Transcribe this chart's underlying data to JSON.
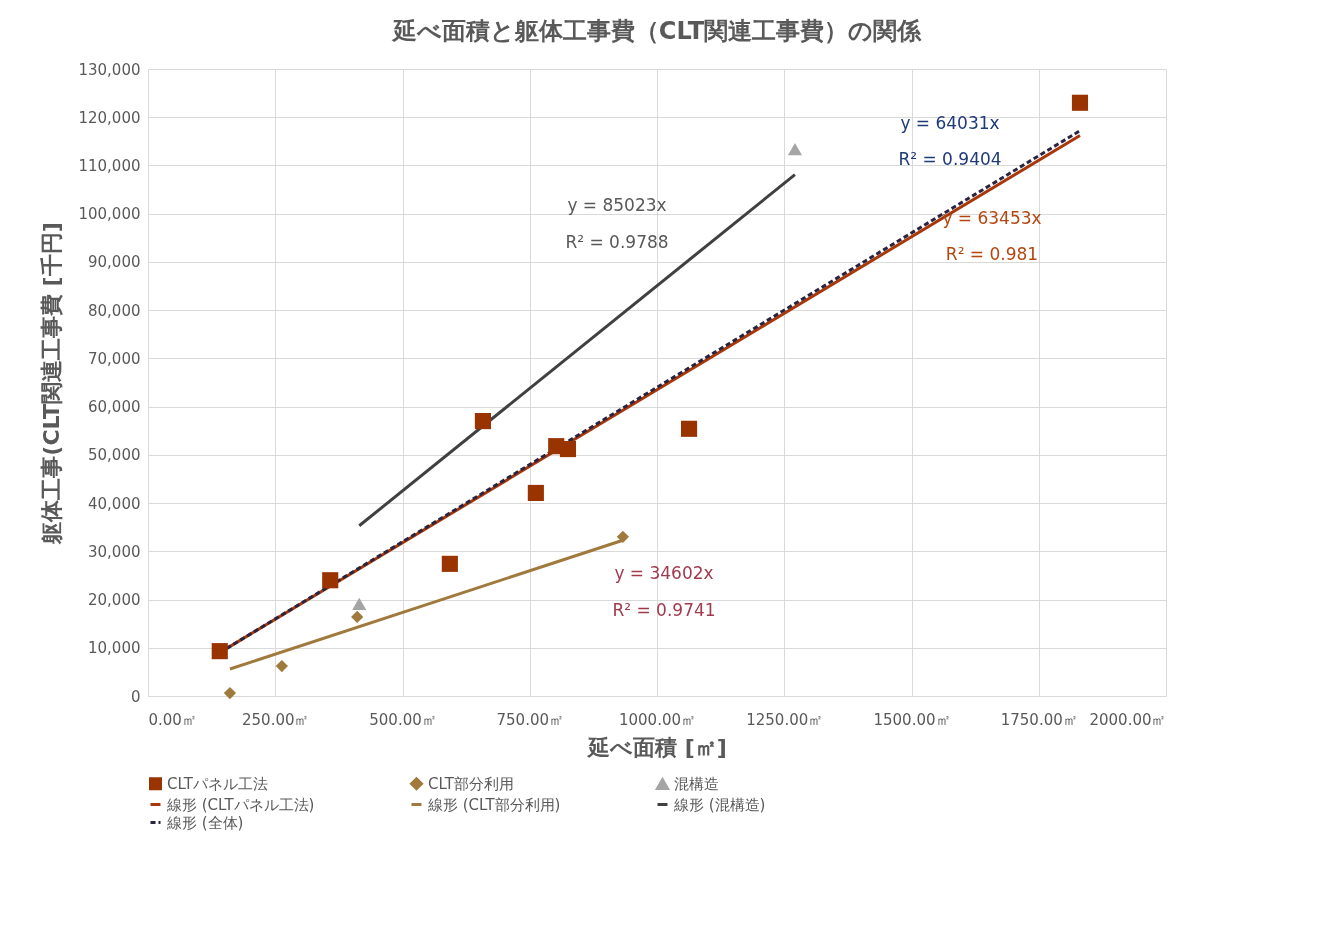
{
  "chart_data": {
    "type": "scatter",
    "title": "延べ面積と躯体工事費（CLT関連工事費）の関係",
    "xlabel": "延べ面積 [㎡]",
    "ylabel": "躯体工事(CLT関連工事費 [千円]",
    "xlim": [
      0,
      2000
    ],
    "xticks": [
      {
        "value": 0,
        "label": "0.00㎡"
      },
      {
        "value": 250,
        "label": "250.00㎡"
      },
      {
        "value": 500,
        "label": "500.00㎡"
      },
      {
        "value": 750,
        "label": "750.00㎡"
      },
      {
        "value": 1000,
        "label": "1000.00㎡"
      },
      {
        "value": 1250,
        "label": "1250.00㎡"
      },
      {
        "value": 1500,
        "label": "1500.00㎡"
      },
      {
        "value": 1750,
        "label": "1750.00㎡"
      },
      {
        "value": 2000,
        "label": "2000.00㎡"
      }
    ],
    "ylim": [
      0,
      130000
    ],
    "yticks": [
      0,
      {
        "value": 10000,
        "label": "10,000"
      },
      {
        "value": 20000,
        "label": "20,000"
      },
      {
        "value": 30000,
        "label": "30,000"
      },
      {
        "value": 40000,
        "label": "40,000"
      },
      {
        "value": 50000,
        "label": "50,000"
      },
      {
        "value": 60000,
        "label": "60,000"
      },
      {
        "value": 70000,
        "label": "70,000"
      },
      {
        "value": 80000,
        "label": "80,000"
      },
      {
        "value": 90000,
        "label": "90,000"
      },
      {
        "value": 100000,
        "label": "100,000"
      },
      {
        "value": 110000,
        "label": "110,000"
      },
      {
        "value": 120000,
        "label": "120,000"
      },
      {
        "value": 130000,
        "label": "130,000"
      }
    ],
    "grid": true,
    "legend": "bottom",
    "series": [
      {
        "name": "CLTパネル工法",
        "type": "scatter",
        "marker": "square",
        "color": "#993300",
        "x": [
          141,
          358,
          593,
          658,
          762,
          802,
          825,
          1063,
          1831
        ],
        "values": [
          9300,
          24000,
          27400,
          57000,
          42100,
          51800,
          51200,
          55400,
          123000
        ]
      },
      {
        "name": "CLT部分利用",
        "type": "scatter",
        "marker": "diamond",
        "color": "#a07a3c",
        "x": [
          161,
          263,
          411,
          933
        ],
        "values": [
          600,
          6200,
          16400,
          33000
        ]
      },
      {
        "name": "混構造",
        "type": "scatter",
        "marker": "triangle",
        "color": "#a5a5a5",
        "x": [
          415,
          1271
        ],
        "values": [
          19100,
          113400
        ]
      },
      {
        "name": "線形 (CLTパネル工法)",
        "type": "line",
        "line_style": "solid",
        "color": "#a8380a",
        "x": [
          141,
          1831
        ],
        "values": [
          9000,
          116200
        ]
      },
      {
        "name": "線形 (CLT部分利用)",
        "type": "line",
        "line_style": "solid",
        "color": "#a07a3c",
        "x": [
          161,
          933
        ],
        "values": [
          5600,
          32300
        ]
      },
      {
        "name": "線形 (混構造)",
        "type": "line",
        "line_style": "solid",
        "color": "#404040",
        "x": [
          415,
          1271
        ],
        "values": [
          35300,
          108100
        ]
      },
      {
        "name": "線形 (全体)",
        "type": "line",
        "line_style": "dashed",
        "color": "#2a2440",
        "x": [
          141,
          1831
        ],
        "values": [
          9000,
          117200
        ]
      }
    ],
    "annotations": [
      "y = 85023x",
      "R² = 0.9788",
      "y = 64031x",
      "R² = 0.9404",
      "y = 63453x",
      "R² = 0.981",
      "y = 34602x",
      "R² = 0.9741"
    ]
  }
}
